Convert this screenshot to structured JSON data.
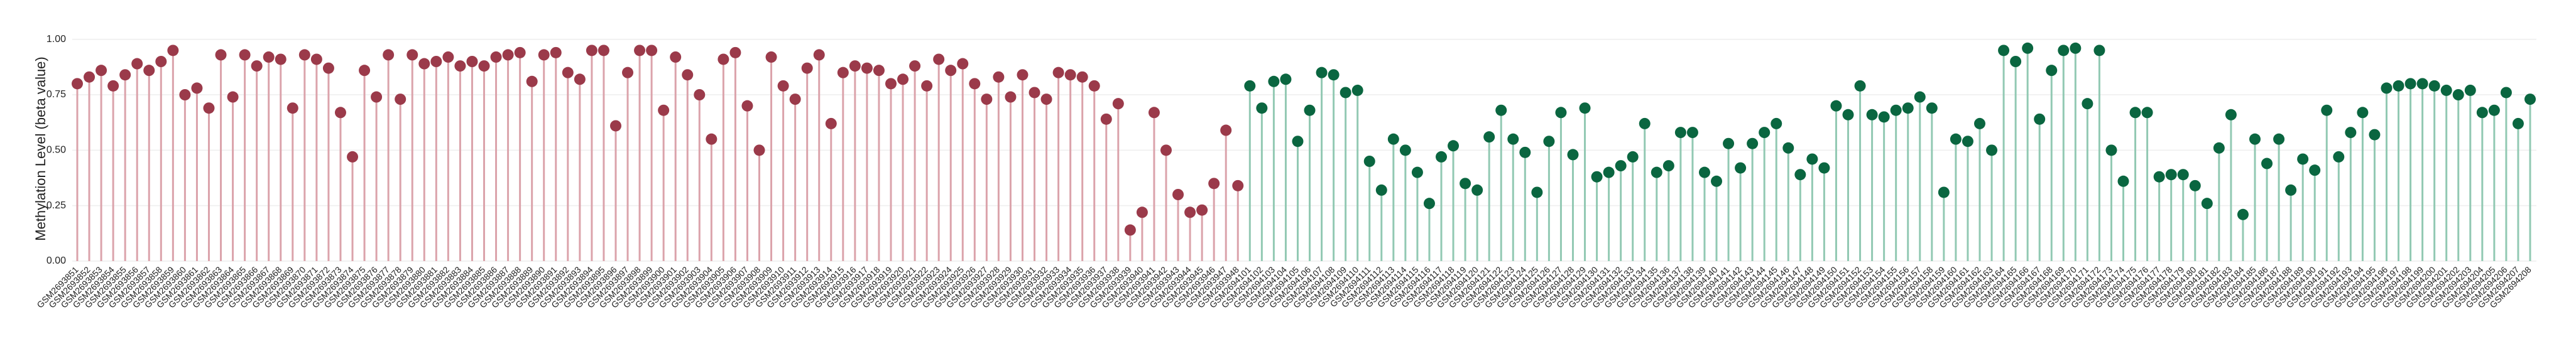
{
  "chart_data": {
    "type": "lollipop",
    "ylabel": "Methylation Level (beta value)",
    "ylim": [
      0,
      1.05
    ],
    "yticks": [
      {
        "value": 0,
        "label": "0.00"
      },
      {
        "value": 0.25,
        "label": "0.25"
      },
      {
        "value": 0.5,
        "label": "0.50"
      },
      {
        "value": 0.75,
        "label": "0.75"
      },
      {
        "value": 1,
        "label": "1.00"
      }
    ],
    "grid": true,
    "categories": [
      "GSM2693851",
      "GSM2693852",
      "GSM2693853",
      "GSM2693854",
      "GSM2693855",
      "GSM2693856",
      "GSM2693857",
      "GSM2693858",
      "GSM2693859",
      "GSM2693860",
      "GSM2693861",
      "GSM2693862",
      "GSM2693863",
      "GSM2693864",
      "GSM2693865",
      "GSM2693866",
      "GSM2693867",
      "GSM2693868",
      "GSM2693869",
      "GSM2693870",
      "GSM2693871",
      "GSM2693872",
      "GSM2693873",
      "GSM2693874",
      "GSM2693875",
      "GSM2693876",
      "GSM2693877",
      "GSM2693878",
      "GSM2693879",
      "GSM2693880",
      "GSM2693881",
      "GSM2693882",
      "GSM2693883",
      "GSM2693884",
      "GSM2693885",
      "GSM2693886",
      "GSM2693887",
      "GSM2693888",
      "GSM2693889",
      "GSM2693890",
      "GSM2693891",
      "GSM2693892",
      "GSM2693893",
      "GSM2693894",
      "GSM2693895",
      "GSM2693896",
      "GSM2693897",
      "GSM2693898",
      "GSM2693899",
      "GSM2693900",
      "GSM2693901",
      "GSM2693902",
      "GSM2693903",
      "GSM2693904",
      "GSM2693905",
      "GSM2693906",
      "GSM2693907",
      "GSM2693908",
      "GSM2693909",
      "GSM2693910",
      "GSM2693911",
      "GSM2693912",
      "GSM2693913",
      "GSM2693914",
      "GSM2693915",
      "GSM2693916",
      "GSM2693917",
      "GSM2693918",
      "GSM2693919",
      "GSM2693920",
      "GSM2693921",
      "GSM2693922",
      "GSM2693923",
      "GSM2693924",
      "GSM2693925",
      "GSM2693926",
      "GSM2693927",
      "GSM2693928",
      "GSM2693929",
      "GSM2693930",
      "GSM2693931",
      "GSM2693932",
      "GSM2693933",
      "GSM2693934",
      "GSM2693935",
      "GSM2693936",
      "GSM2693937",
      "GSM2693938",
      "GSM2693939",
      "GSM2693940",
      "GSM2693941",
      "GSM2693942",
      "GSM2693943",
      "GSM2693944",
      "GSM2693945",
      "GSM2693946",
      "GSM2693947",
      "GSM2693948",
      "GSM2694101",
      "GSM2694102",
      "GSM2694103",
      "GSM2694104",
      "GSM2694105",
      "GSM2694106",
      "GSM2694107",
      "GSM2694108",
      "GSM2694109",
      "GSM2694110",
      "GSM2694111",
      "GSM2694112",
      "GSM2694113",
      "GSM2694114",
      "GSM2694115",
      "GSM2694116",
      "GSM2694117",
      "GSM2694118",
      "GSM2694119",
      "GSM2694120",
      "GSM2694121",
      "GSM2694122",
      "GSM2694123",
      "GSM2694124",
      "GSM2694125",
      "GSM2694126",
      "GSM2694127",
      "GSM2694128",
      "GSM2694129",
      "GSM2694130",
      "GSM2694131",
      "GSM2694132",
      "GSM2694133",
      "GSM2694134",
      "GSM2694135",
      "GSM2694136",
      "GSM2694137",
      "GSM2694138",
      "GSM2694139",
      "GSM2694140",
      "GSM2694141",
      "GSM2694142",
      "GSM2694143",
      "GSM2694144",
      "GSM2694145",
      "GSM2694146",
      "GSM2694147",
      "GSM2694148",
      "GSM2694149",
      "GSM2694150",
      "GSM2694151",
      "GSM2694152",
      "GSM2694153",
      "GSM2694154",
      "GSM2694155",
      "GSM2694156",
      "GSM2694157",
      "GSM2694158",
      "GSM2694159",
      "GSM2694160",
      "GSM2694161",
      "GSM2694162",
      "GSM2694163",
      "GSM2694164",
      "GSM2694165",
      "GSM2694166",
      "GSM2694167",
      "GSM2694168",
      "GSM2694169",
      "GSM2694170",
      "GSM2694171",
      "GSM2694172",
      "GSM2694173",
      "GSM2694174",
      "GSM2694175",
      "GSM2694176",
      "GSM2694177",
      "GSM2694178",
      "GSM2694179",
      "GSM2694180",
      "GSM2694181",
      "GSM2694182",
      "GSM2694183",
      "GSM2694184",
      "GSM2694185",
      "GSM2694186",
      "GSM2694187",
      "GSM2694188",
      "GSM2694189",
      "GSM2694190",
      "GSM2694191",
      "GSM2694192",
      "GSM2694193",
      "GSM2694194",
      "GSM2694195",
      "GSM2694196",
      "GSM2694197",
      "GSM2694198",
      "GSM2694199",
      "GSM2694200",
      "GSM2694201",
      "GSM2694202",
      "GSM2694203",
      "GSM2694204",
      "GSM2694205",
      "GSM2694206",
      "GSM2694207",
      "GSM2694208"
    ],
    "series": [
      {
        "color": "#9b3a4a",
        "stem_color": "#dba3ab",
        "values": [
          0.8,
          0.83,
          0.86,
          0.79,
          0.84,
          0.89,
          0.86,
          0.9,
          0.95,
          0.75,
          0.78,
          0.69,
          0.93,
          0.74,
          0.93,
          0.88,
          0.92,
          0.91,
          0.69,
          0.93,
          0.91,
          0.87,
          0.67,
          0.47,
          0.86,
          0.74,
          0.93,
          0.73,
          0.93,
          0.89,
          0.9,
          0.92,
          0.88,
          0.9,
          0.88,
          0.92,
          0.93,
          0.94,
          0.81,
          0.93,
          0.94,
          0.85,
          0.82,
          0.95,
          0.95,
          0.61,
          0.85,
          0.95,
          0.95,
          0.68,
          0.92,
          0.84,
          0.75,
          0.55,
          0.91,
          0.94,
          0.7,
          0.5,
          0.92,
          0.79,
          0.73,
          0.87,
          0.93,
          0.62,
          0.85,
          0.88,
          0.87,
          0.86,
          0.8,
          0.82,
          0.88,
          0.79,
          0.91,
          0.86,
          0.89,
          0.8,
          0.73,
          0.83,
          0.74,
          0.84,
          0.76,
          0.73,
          0.85,
          0.84,
          0.83,
          0.79,
          0.64,
          0.71,
          0.14,
          0.22,
          0.67,
          0.5,
          0.3,
          0.22,
          0.23,
          0.35,
          0.59,
          0.34,
          null,
          null,
          null,
          null,
          null,
          null,
          null,
          null,
          null,
          null,
          null,
          null,
          null,
          null,
          null,
          null,
          null,
          null,
          null,
          null,
          null,
          null,
          null,
          null,
          null,
          null,
          null,
          null,
          null,
          null,
          null,
          null,
          null,
          null,
          null,
          null,
          null,
          null,
          null,
          null,
          null,
          null,
          null,
          null,
          null,
          null,
          null,
          null,
          null,
          null,
          null,
          null,
          null,
          null,
          null,
          null,
          null,
          null,
          null,
          null,
          null,
          null,
          null,
          null,
          null,
          null,
          null,
          null,
          null,
          null,
          null,
          null,
          null,
          null,
          null,
          null,
          null,
          null,
          null,
          null,
          null,
          null,
          null,
          null,
          null,
          null,
          null,
          null,
          null,
          null,
          null,
          null,
          null,
          null,
          null,
          null,
          null,
          null,
          null,
          null,
          null,
          null,
          null,
          null,
          null,
          null,
          null,
          null
        ]
      },
      {
        "color": "#0a6640",
        "stem_color": "#92c9b3",
        "values": [
          null,
          null,
          null,
          null,
          null,
          null,
          null,
          null,
          null,
          null,
          null,
          null,
          null,
          null,
          null,
          null,
          null,
          null,
          null,
          null,
          null,
          null,
          null,
          null,
          null,
          null,
          null,
          null,
          null,
          null,
          null,
          null,
          null,
          null,
          null,
          null,
          null,
          null,
          null,
          null,
          null,
          null,
          null,
          null,
          null,
          null,
          null,
          null,
          null,
          null,
          null,
          null,
          null,
          null,
          null,
          null,
          null,
          null,
          null,
          null,
          null,
          null,
          null,
          null,
          null,
          null,
          null,
          null,
          null,
          null,
          null,
          null,
          null,
          null,
          null,
          null,
          null,
          null,
          null,
          null,
          null,
          null,
          null,
          null,
          null,
          null,
          null,
          null,
          null,
          null,
          null,
          null,
          null,
          null,
          null,
          null,
          null,
          null,
          0.79,
          0.69,
          0.81,
          0.82,
          0.54,
          0.68,
          0.85,
          0.84,
          0.76,
          0.77,
          0.45,
          0.32,
          0.55,
          0.5,
          0.4,
          0.26,
          0.47,
          0.52,
          0.35,
          0.32,
          0.56,
          0.68,
          0.55,
          0.49,
          0.31,
          0.54,
          0.67,
          0.48,
          0.69,
          0.38,
          0.4,
          0.43,
          0.47,
          0.62,
          0.4,
          0.43,
          0.58,
          0.58,
          0.4,
          0.36,
          0.53,
          0.42,
          0.53,
          0.58,
          0.62,
          0.51,
          0.39,
          0.46,
          0.42,
          0.7,
          0.66,
          0.79,
          0.66,
          0.65,
          0.68,
          0.69,
          0.74,
          0.69,
          0.31,
          0.55,
          0.54,
          0.62,
          0.5,
          0.95,
          0.9,
          0.96,
          0.64,
          0.86,
          0.95,
          0.96,
          0.71,
          0.95,
          0.5,
          0.36,
          0.67,
          0.67,
          0.38,
          0.39,
          0.39,
          0.34,
          0.26,
          0.51,
          0.66,
          0.21,
          0.55,
          0.44,
          0.55,
          0.32,
          0.46,
          0.41,
          0.68,
          0.47,
          0.58,
          0.67,
          0.57,
          0.78,
          0.79,
          0.8,
          0.8,
          0.79,
          0.77,
          0.75,
          0.77,
          0.67,
          0.68,
          0.76,
          0.62,
          0.73
        ]
      }
    ]
  }
}
